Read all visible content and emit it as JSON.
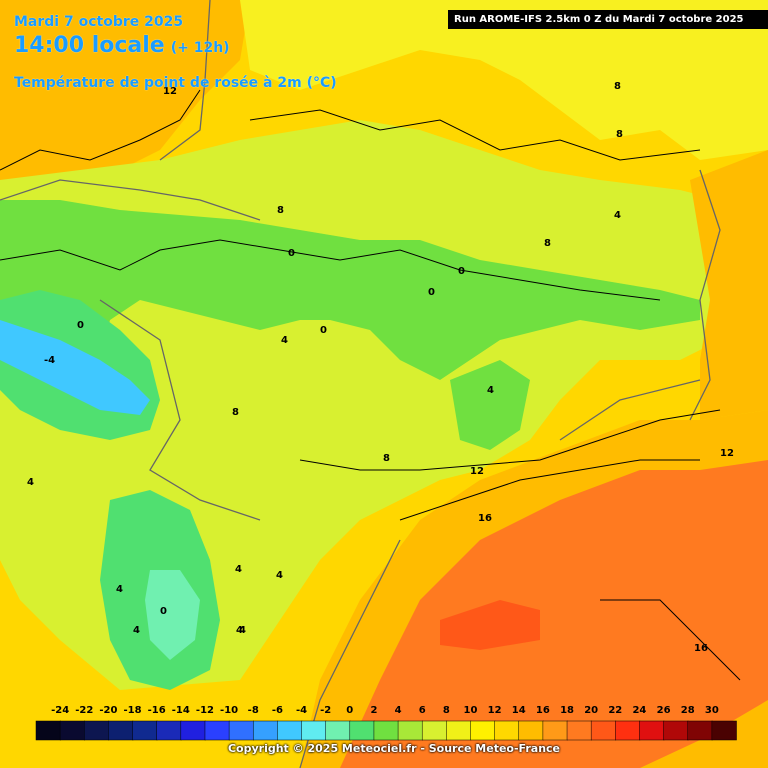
{
  "header": {
    "date": "Mardi 7 octobre 2025",
    "hour": "14:00 locale",
    "offset": "(+ 12h)",
    "parameter": "Température de point de rosée à 2m (°C)"
  },
  "run_info": "Run AROME-IFS 2.5km 0 Z du Mardi 7 octobre 2025",
  "copyright": "Copyright © 2025 Meteociel.fr - Source Meteo-France",
  "legend": {
    "ticks": [
      "-24",
      "-22",
      "-20",
      "-18",
      "-16",
      "-14",
      "-12",
      "-10",
      "-8",
      "-6",
      "-4",
      "-2",
      "0",
      "2",
      "4",
      "6",
      "8",
      "10",
      "12",
      "14",
      "16",
      "18",
      "20",
      "22",
      "24",
      "26",
      "28",
      "30"
    ],
    "colors": [
      "#05051a",
      "#0a0a30",
      "#0d1650",
      "#0d2070",
      "#102a90",
      "#1a2ab8",
      "#2020e0",
      "#2a40ff",
      "#3070ff",
      "#35a0ff",
      "#40c8ff",
      "#60ecf0",
      "#70f0b0",
      "#50e070",
      "#70e040",
      "#a8e838",
      "#d8f030",
      "#f0f018",
      "#fff000",
      "#ffd800",
      "#ffbc00",
      "#ff9a18",
      "#ff7a20",
      "#ff5818",
      "#ff3010",
      "#e01010",
      "#b00808",
      "#800404",
      "#4a0202"
    ]
  },
  "contour_labels": [
    "12",
    "8",
    "8",
    "4",
    "8",
    "8",
    "0",
    "0",
    "0",
    "0",
    "0",
    "4",
    "-4",
    "4",
    "8",
    "8",
    "4",
    "12",
    "16",
    "4",
    "4",
    "4",
    "4",
    "4",
    "0",
    "4",
    "12",
    "16"
  ]
}
